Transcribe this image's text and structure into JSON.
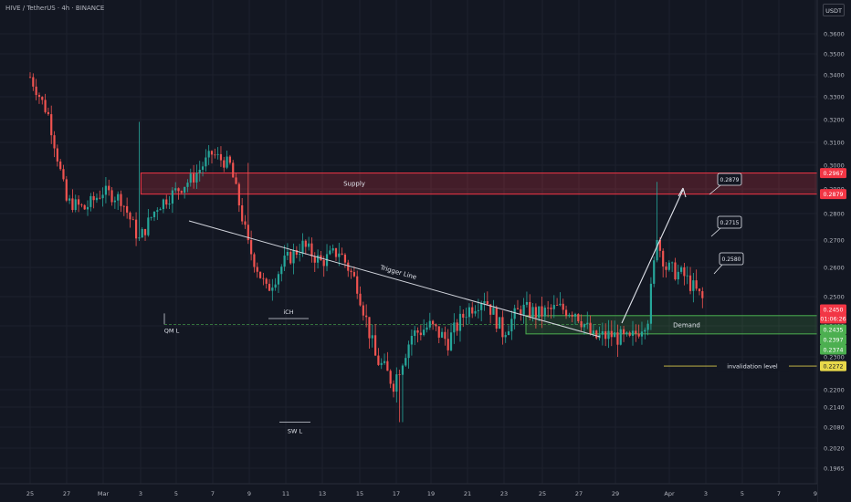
{
  "header": {
    "title": "HIVE / TetherUS · 4h · BINANCE",
    "currency": "USDT"
  },
  "colors": {
    "background": "#131722",
    "up": "#26a69a",
    "down": "#ef5350",
    "grid": "#1e222d",
    "supply": "#f23645",
    "demand": "#4caf50",
    "invalidation": "#d7c74a",
    "text": "#d1d4dc"
  },
  "chart_data": {
    "type": "candlestick",
    "title": "HIVE / TetherUS · 4h · BINANCE",
    "quote_currency": "USDT",
    "y_ticks": [
      "0.3600",
      "0.3500",
      "0.3400",
      "0.3300",
      "0.3200",
      "0.3100",
      "0.3000",
      "0.2900",
      "0.2800",
      "0.2700",
      "0.2600",
      "0.2500",
      "0.2400",
      "0.2300",
      "0.2200",
      "0.2140",
      "0.2080",
      "0.2020",
      "0.1965"
    ],
    "x_ticks": [
      "25",
      "27",
      "Mar",
      "3",
      "5",
      "7",
      "9",
      "11",
      "13",
      "15",
      "17",
      "19",
      "21",
      "23",
      "25",
      "27",
      "29",
      "Apr",
      "3",
      "5",
      "7",
      "9"
    ],
    "series_anchors": [
      {
        "day": 0,
        "price": 0.339
      },
      {
        "day": 1,
        "price": 0.322
      },
      {
        "day": 2,
        "price": 0.285
      },
      {
        "day": 3,
        "price": 0.282
      },
      {
        "day": 4,
        "price": 0.289
      },
      {
        "day": 5,
        "price": 0.286
      },
      {
        "day": 6,
        "price": 0.27
      },
      {
        "day": 7,
        "price": 0.283
      },
      {
        "day": 8,
        "price": 0.289
      },
      {
        "day": 9,
        "price": 0.295
      },
      {
        "day": 10,
        "price": 0.305
      },
      {
        "day": 11,
        "price": 0.3
      },
      {
        "day": 12,
        "price": 0.268
      },
      {
        "day": 13,
        "price": 0.252
      },
      {
        "day": 14,
        "price": 0.262
      },
      {
        "day": 15,
        "price": 0.268
      },
      {
        "day": 16,
        "price": 0.262
      },
      {
        "day": 17,
        "price": 0.266
      },
      {
        "day": 18,
        "price": 0.254
      },
      {
        "day": 19,
        "price": 0.23
      },
      {
        "day": 20,
        "price": 0.222
      },
      {
        "day": 21,
        "price": 0.237
      },
      {
        "day": 22,
        "price": 0.24
      },
      {
        "day": 23,
        "price": 0.235
      },
      {
        "day": 24,
        "price": 0.245
      },
      {
        "day": 25,
        "price": 0.25
      },
      {
        "day": 26,
        "price": 0.238
      },
      {
        "day": 27,
        "price": 0.246
      },
      {
        "day": 28,
        "price": 0.244
      },
      {
        "day": 29,
        "price": 0.246
      },
      {
        "day": 30,
        "price": 0.245
      },
      {
        "day": 31,
        "price": 0.236
      },
      {
        "day": 32,
        "price": 0.237
      },
      {
        "day": 33,
        "price": 0.235
      },
      {
        "day": 34,
        "price": 0.243
      },
      {
        "day": 34.5,
        "price": 0.27
      },
      {
        "day": 35,
        "price": 0.26
      },
      {
        "day": 36,
        "price": 0.257
      },
      {
        "day": 37,
        "price": 0.249
      }
    ],
    "annotations": {
      "supply": {
        "label": "Supply",
        "top": 0.2967,
        "bottom": 0.2879
      },
      "demand": {
        "label": "Demand",
        "top": 0.2435,
        "bottom": 0.2374
      },
      "invalidation": {
        "label": "invalidation level",
        "price": 0.2272
      },
      "trigger_line": {
        "label": "Trigger Line"
      },
      "qml": {
        "label": "QM L"
      },
      "ich": {
        "label": "iCH"
      },
      "swl": {
        "label": "SW L"
      },
      "targets": [
        "0.2879",
        "0.2715",
        "0.2580"
      ]
    },
    "price_labels": [
      {
        "text": "0.2967",
        "kind": "supply"
      },
      {
        "text": "0.2879",
        "kind": "supply"
      },
      {
        "text": "0.2450",
        "kind": "last"
      },
      {
        "text": "01:06:26",
        "kind": "timer"
      },
      {
        "text": "0.2435",
        "kind": "demand"
      },
      {
        "text": "0.2397",
        "kind": "demand"
      },
      {
        "text": "0.2374",
        "kind": "demand"
      },
      {
        "text": "0.2272",
        "kind": "invalidation"
      }
    ]
  }
}
